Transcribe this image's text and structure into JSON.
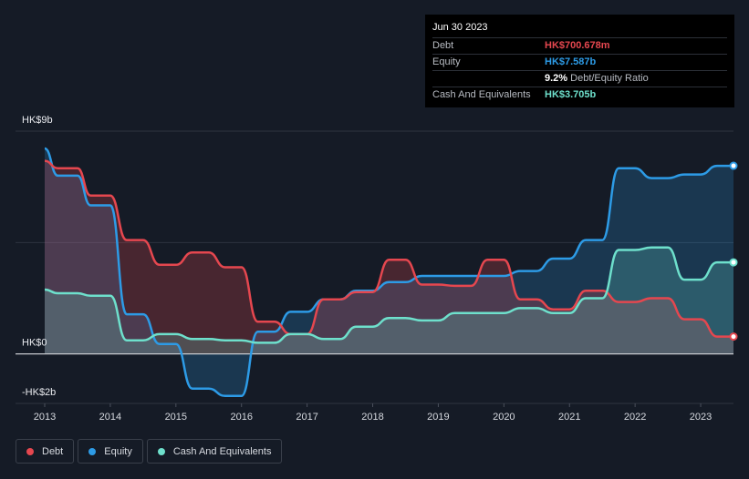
{
  "colors": {
    "debt": "#e5474f",
    "equity": "#2d9be6",
    "cash": "#6ee0cc",
    "grid": "#2e3440",
    "zero_line": "#c6c9ce"
  },
  "tooltip": {
    "date": "Jun 30 2023",
    "rows": [
      {
        "label": "Debt",
        "value": "HK$700.678m"
      },
      {
        "label": "Equity",
        "value": "HK$7.587b"
      },
      {
        "label": "",
        "value": "9.2%",
        "suffix": "Debt/Equity Ratio"
      },
      {
        "label": "Cash And Equivalents",
        "value": "HK$3.705b"
      }
    ]
  },
  "legend": [
    {
      "label": "Debt",
      "color": "#e5474f"
    },
    {
      "label": "Equity",
      "color": "#2d9be6"
    },
    {
      "label": "Cash And Equivalents",
      "color": "#6ee0cc"
    }
  ],
  "chart_data": {
    "type": "area",
    "title": "",
    "xlabel": "",
    "ylabel": "",
    "y_unit": "HK$ billions",
    "ylim": [
      -2,
      9
    ],
    "xlim": [
      2013.0,
      2023.5
    ],
    "y_tick_labels": [
      {
        "value": 9,
        "label": "HK$9b"
      },
      {
        "value": 0,
        "label": "HK$0"
      },
      {
        "value": -2,
        "label": "-HK$2b"
      }
    ],
    "x_tick_labels": [
      "2013",
      "2014",
      "2015",
      "2016",
      "2017",
      "2018",
      "2019",
      "2020",
      "2021",
      "2022",
      "2023"
    ],
    "x_ticks": [
      2013,
      2014,
      2015,
      2016,
      2017,
      2018,
      2019,
      2020,
      2021,
      2022,
      2023
    ],
    "series": [
      {
        "name": "Debt",
        "x": [
          2013.0,
          2013.2,
          2013.5,
          2013.7,
          2014.0,
          2014.25,
          2014.5,
          2014.75,
          2015.0,
          2015.25,
          2015.5,
          2015.75,
          2016.0,
          2016.25,
          2016.5,
          2016.75,
          2017.0,
          2017.25,
          2017.5,
          2017.75,
          2018.0,
          2018.25,
          2018.5,
          2018.75,
          2019.0,
          2019.25,
          2019.5,
          2019.75,
          2020.0,
          2020.25,
          2020.5,
          2020.75,
          2021.0,
          2021.25,
          2021.5,
          2021.75,
          2022.0,
          2022.25,
          2022.5,
          2022.75,
          2023.0,
          2023.25,
          2023.5
        ],
        "values": [
          7.8,
          7.5,
          7.5,
          6.4,
          6.4,
          4.6,
          4.6,
          3.6,
          3.6,
          4.1,
          4.1,
          3.5,
          3.5,
          1.3,
          1.3,
          0.8,
          0.8,
          2.2,
          2.2,
          2.5,
          2.5,
          3.8,
          3.8,
          2.8,
          2.8,
          2.75,
          2.75,
          3.8,
          3.8,
          2.2,
          2.2,
          1.8,
          1.8,
          2.55,
          2.55,
          2.1,
          2.1,
          2.25,
          2.25,
          1.4,
          1.4,
          0.7,
          0.7
        ]
      },
      {
        "name": "Equity",
        "x": [
          2013.0,
          2013.2,
          2013.5,
          2013.7,
          2014.0,
          2014.25,
          2014.5,
          2014.75,
          2015.0,
          2015.25,
          2015.5,
          2015.75,
          2016.0,
          2016.25,
          2016.5,
          2016.75,
          2017.0,
          2017.25,
          2017.5,
          2017.75,
          2018.0,
          2018.25,
          2018.5,
          2018.75,
          2019.0,
          2019.25,
          2019.5,
          2019.75,
          2020.0,
          2020.25,
          2020.5,
          2020.75,
          2021.0,
          2021.25,
          2021.5,
          2021.75,
          2022.0,
          2022.25,
          2022.5,
          2022.75,
          2023.0,
          2023.25,
          2023.5
        ],
        "values": [
          8.3,
          7.2,
          7.2,
          6.0,
          6.0,
          1.6,
          1.6,
          0.4,
          0.4,
          -1.4,
          -1.4,
          -1.7,
          -1.7,
          0.9,
          0.9,
          1.7,
          1.7,
          2.2,
          2.2,
          2.55,
          2.55,
          2.9,
          2.9,
          3.15,
          3.15,
          3.15,
          3.15,
          3.15,
          3.15,
          3.35,
          3.35,
          3.85,
          3.85,
          4.6,
          4.6,
          7.5,
          7.5,
          7.1,
          7.1,
          7.25,
          7.25,
          7.6,
          7.6
        ]
      },
      {
        "name": "Cash And Equivalents",
        "x": [
          2013.0,
          2013.2,
          2013.5,
          2013.7,
          2014.0,
          2014.25,
          2014.5,
          2014.75,
          2015.0,
          2015.25,
          2015.5,
          2015.75,
          2016.0,
          2016.25,
          2016.5,
          2016.75,
          2017.0,
          2017.25,
          2017.5,
          2017.75,
          2018.0,
          2018.25,
          2018.5,
          2018.75,
          2019.0,
          2019.25,
          2019.5,
          2019.75,
          2020.0,
          2020.25,
          2020.5,
          2020.75,
          2021.0,
          2021.25,
          2021.5,
          2021.75,
          2022.0,
          2022.25,
          2022.5,
          2022.75,
          2023.0,
          2023.25,
          2023.5
        ],
        "values": [
          2.6,
          2.45,
          2.45,
          2.35,
          2.35,
          0.55,
          0.55,
          0.8,
          0.8,
          0.6,
          0.6,
          0.55,
          0.55,
          0.45,
          0.45,
          0.8,
          0.8,
          0.6,
          0.6,
          1.1,
          1.1,
          1.45,
          1.45,
          1.35,
          1.35,
          1.65,
          1.65,
          1.65,
          1.65,
          1.85,
          1.85,
          1.65,
          1.65,
          2.25,
          2.25,
          4.2,
          4.2,
          4.3,
          4.3,
          3.0,
          3.0,
          3.7,
          3.7
        ]
      }
    ]
  }
}
